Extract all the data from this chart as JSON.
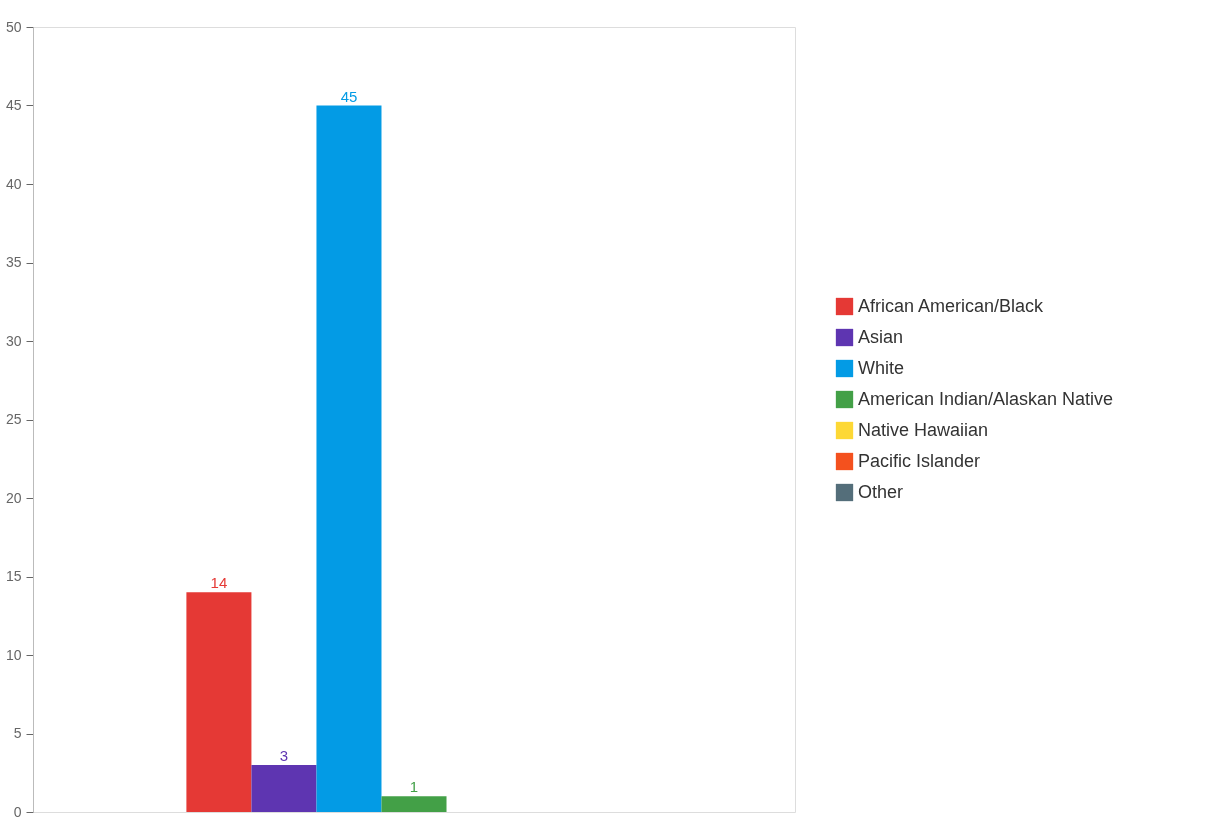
{
  "chart_data": {
    "type": "bar",
    "categories": [
      null
    ],
    "series": [
      {
        "name": "African American/Black",
        "color": "#e53935",
        "values": [
          14
        ]
      },
      {
        "name": "Asian",
        "color": "#5e35b1",
        "values": [
          3
        ]
      },
      {
        "name": "White",
        "color": "#039be5",
        "values": [
          45
        ]
      },
      {
        "name": "American Indian/Alaskan Native",
        "color": "#43a047",
        "values": [
          1
        ]
      },
      {
        "name": "Native Hawaiian",
        "color": "#fdd835",
        "values": [
          null
        ]
      },
      {
        "name": "Pacific Islander",
        "color": "#f4511e",
        "values": [
          null
        ]
      },
      {
        "name": "Other",
        "color": "#546e7a",
        "values": [
          null
        ]
      }
    ],
    "ylim": [
      0,
      50
    ],
    "yticks": [
      0,
      5,
      10,
      15,
      20,
      25,
      30,
      35,
      40,
      45,
      50
    ],
    "data_labels": true,
    "grid": false,
    "legend": "right",
    "tick_labels": "y"
  }
}
